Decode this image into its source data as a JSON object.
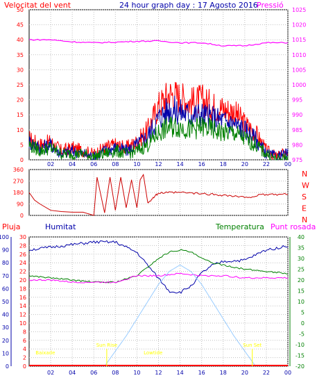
{
  "header": {
    "left": "Velocitat del vent",
    "center": "24 hour graph day : 17 Agosto 2016",
    "right": "Pressió"
  },
  "colors": {
    "red": "#ff0000",
    "blue": "#0000aa",
    "green": "#008000",
    "magenta": "#ff00ff",
    "darkred": "#cc0000",
    "sky": "#99ccff",
    "yellow": "#ffff00",
    "grid": "#c0c0c0",
    "frame": "#000000"
  },
  "chart_data": [
    {
      "type": "line",
      "panel": "wind-pressure",
      "x_ticks": [
        "02",
        "04",
        "06",
        "08",
        "10",
        "12",
        "14",
        "16",
        "18",
        "20",
        "22",
        "00"
      ],
      "left_axis": {
        "ticks": [
          "0",
          "5",
          "10",
          "15",
          "20",
          "25",
          "30",
          "35",
          "40",
          "45",
          "50"
        ],
        "range": [
          0,
          50
        ]
      },
      "right_axis": {
        "ticks": [
          "975",
          "980",
          "985",
          "990",
          "995",
          "1000",
          "1005",
          "1010",
          "1015",
          "1020",
          "1025"
        ],
        "range": [
          975,
          1025
        ]
      },
      "series": [
        {
          "color": "red",
          "axis": "left",
          "x": [
            0,
            1,
            2,
            3,
            4,
            5,
            6,
            7,
            8,
            9,
            10,
            11,
            12,
            13,
            14,
            15,
            16,
            17,
            18,
            19,
            20,
            21,
            22,
            23,
            24
          ],
          "y": [
            7,
            5,
            6,
            3,
            4,
            3,
            2,
            4,
            5,
            4,
            6,
            10,
            18,
            22,
            21,
            19,
            20,
            18,
            17,
            16,
            12,
            9,
            3,
            1,
            3
          ]
        },
        {
          "color": "blue",
          "axis": "left",
          "x": [
            0,
            1,
            2,
            3,
            4,
            5,
            6,
            7,
            8,
            9,
            10,
            11,
            12,
            13,
            14,
            15,
            16,
            17,
            18,
            19,
            20,
            21,
            22,
            23,
            24
          ],
          "y": [
            6,
            4,
            5,
            2,
            3,
            2,
            1,
            3,
            4,
            3,
            5,
            8,
            14,
            17,
            16,
            15,
            15,
            14,
            13,
            12,
            10,
            7,
            2,
            1,
            2
          ]
        },
        {
          "color": "green",
          "axis": "left",
          "x": [
            0,
            1,
            2,
            3,
            4,
            5,
            6,
            7,
            8,
            9,
            10,
            11,
            12,
            13,
            14,
            15,
            16,
            17,
            18,
            19,
            20,
            21,
            22,
            23,
            24
          ],
          "y": [
            5,
            3,
            4,
            2,
            2,
            2,
            1,
            2,
            3,
            2,
            3,
            5,
            9,
            11,
            11,
            10,
            11,
            10,
            9,
            9,
            7,
            5,
            2,
            0,
            1
          ]
        },
        {
          "color": "magenta",
          "axis": "right",
          "x": [
            0,
            2,
            4,
            6,
            8,
            10,
            12,
            14,
            16,
            18,
            20,
            22,
            24
          ],
          "y": [
            1015,
            1015,
            1014.3,
            1014,
            1014.2,
            1014.5,
            1014.6,
            1014,
            1014,
            1013,
            1013,
            1014,
            1014
          ]
        }
      ]
    },
    {
      "type": "line",
      "panel": "wind-direction",
      "left_axis": {
        "ticks": [
          "0",
          "90",
          "180",
          "270",
          "360"
        ],
        "range": [
          0,
          360
        ]
      },
      "compass": [
        "N",
        "W",
        "S",
        "E",
        "N"
      ],
      "series": [
        {
          "color": "darkred",
          "x": [
            0,
            0.5,
            1,
            2,
            3,
            4,
            5,
            6,
            6.3,
            7,
            7.5,
            8,
            8.5,
            9,
            9.5,
            10,
            10.3,
            10.6,
            11,
            12,
            14,
            16,
            18,
            20,
            22,
            24
          ],
          "y": [
            180,
            120,
            90,
            40,
            30,
            25,
            25,
            0,
            300,
            20,
            300,
            40,
            300,
            60,
            280,
            60,
            280,
            320,
            100,
            175,
            180,
            170,
            160,
            140,
            165,
            165
          ]
        }
      ]
    },
    {
      "type": "line",
      "panel": "temp-humidity",
      "left_labels": [
        "Pluja",
        "Humitat"
      ],
      "right_labels": [
        "Temperatura",
        "Punt rosada"
      ],
      "rain_axis": {
        "ticks": [
          "0",
          "2",
          "4",
          "6",
          "8",
          "10",
          "12",
          "14",
          "16",
          "18",
          "20",
          "22",
          "24",
          "26",
          "28",
          "30"
        ],
        "range": [
          0,
          30
        ]
      },
      "humidity_axis": {
        "ticks": [
          "0",
          "10",
          "20",
          "30",
          "40",
          "50",
          "60",
          "70",
          "80",
          "90",
          "100"
        ],
        "range": [
          0,
          100
        ]
      },
      "temp_axis": {
        "ticks": [
          "-20",
          "-15",
          "-10",
          "-5",
          "0",
          "5",
          "10",
          "15",
          "20",
          "25",
          "30",
          "35",
          "40"
        ],
        "range": [
          -20,
          40
        ]
      },
      "x_ticks": [
        "02",
        "04",
        "06",
        "08",
        "10",
        "12",
        "14",
        "16",
        "18",
        "20",
        "22",
        "00"
      ],
      "series": [
        {
          "name": "Humitat",
          "color": "blue",
          "axis": "humidity",
          "x": [
            0,
            2,
            4,
            6,
            8,
            10,
            11,
            12,
            13,
            14,
            15,
            16,
            17,
            18,
            20,
            22,
            24
          ],
          "y": [
            90,
            92,
            94,
            96,
            96,
            88,
            78,
            68,
            58,
            57,
            62,
            72,
            78,
            81,
            82,
            90,
            93
          ]
        },
        {
          "name": "Temperatura",
          "color": "green",
          "axis": "temp",
          "x": [
            0,
            2,
            4,
            6,
            8,
            10,
            11,
            12,
            13,
            14,
            15,
            16,
            17,
            18,
            20,
            22,
            24
          ],
          "y": [
            22,
            21,
            20,
            19,
            19,
            22,
            26,
            30,
            33,
            34,
            33,
            30,
            28,
            27,
            25,
            24,
            23
          ]
        },
        {
          "name": "Punt rosada",
          "color": "magenta",
          "axis": "temp",
          "x": [
            0,
            2,
            4,
            6,
            8,
            10,
            12,
            14,
            16,
            18,
            20,
            22,
            24
          ],
          "y": [
            20,
            20,
            19,
            19,
            19,
            22,
            22,
            23,
            22,
            22,
            21,
            21,
            21
          ]
        },
        {
          "color": "sky",
          "axis": "temp",
          "x": [
            7,
            8,
            9,
            10,
            11,
            12,
            13,
            14,
            15,
            16,
            17,
            18,
            19,
            20,
            21
          ],
          "y": [
            -20,
            -13,
            -6,
            2,
            10,
            18,
            24,
            27,
            24,
            18,
            10,
            2,
            -6,
            -13,
            -20
          ]
        }
      ],
      "annotations": [
        {
          "text": "Baixade",
          "x": 1.5
        },
        {
          "text": "Sun Rise",
          "x": 7.2
        },
        {
          "text": "Lowtide",
          "x": 11.5
        },
        {
          "text": "Sun Set",
          "x": 20.7
        }
      ]
    }
  ]
}
